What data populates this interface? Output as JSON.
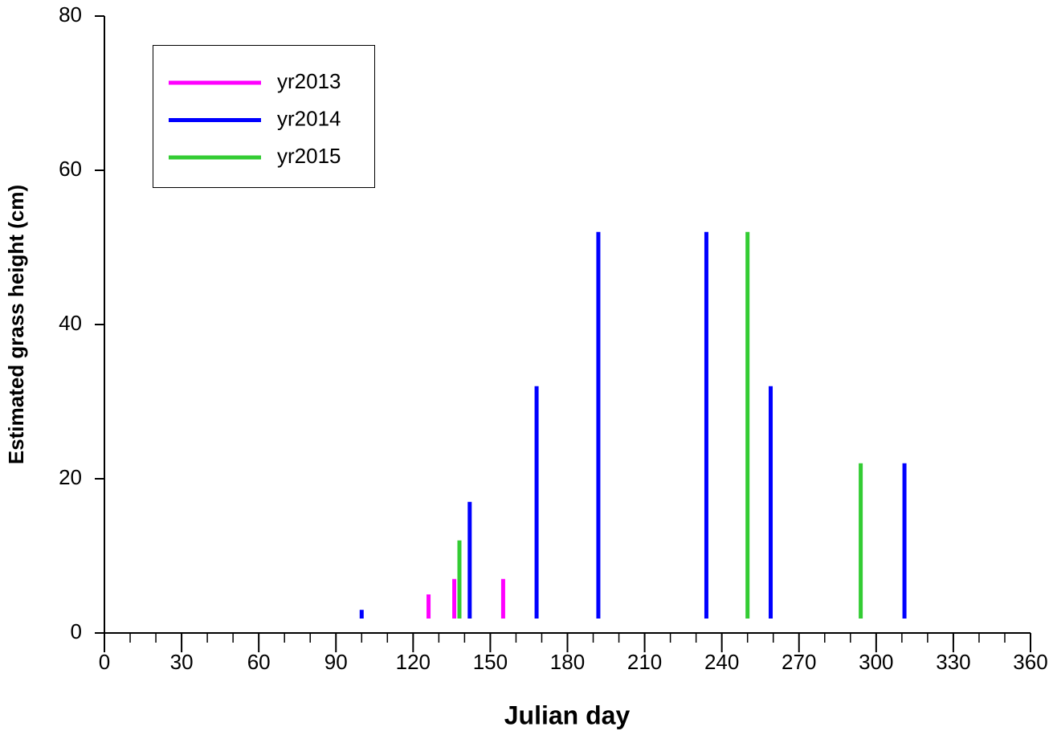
{
  "chart_data": {
    "type": "drop-line",
    "xlabel": "Julian day",
    "ylabel": "Estimated grass height (cm)",
    "xlim": [
      0,
      360
    ],
    "xticks": [
      0,
      30,
      60,
      90,
      120,
      150,
      180,
      210,
      240,
      270,
      300,
      330,
      360
    ],
    "xminorticks": [
      0,
      10,
      20,
      30,
      40,
      50,
      60,
      70,
      80,
      90,
      100,
      110,
      120,
      130,
      140,
      150,
      160,
      170,
      180,
      190,
      200,
      210,
      220,
      230,
      240,
      250,
      260,
      270,
      280,
      290,
      300,
      310,
      320,
      330,
      340,
      350,
      360
    ],
    "ylim": [
      0,
      80
    ],
    "yticks": [
      0,
      20,
      40,
      60,
      80
    ],
    "legend": "upper left",
    "series": [
      {
        "name": "yr2013",
        "color": "#ff00ff",
        "x": [
          126,
          136,
          155
        ],
        "values": [
          5,
          7,
          7
        ]
      },
      {
        "name": "yr2014",
        "color": "#0000ff",
        "x": [
          100,
          142,
          168,
          192,
          234,
          259,
          311
        ],
        "values": [
          3,
          17,
          32,
          52,
          52,
          32,
          22
        ]
      },
      {
        "name": "yr2015",
        "color": "#33cc33",
        "x": [
          138,
          250,
          294
        ],
        "values": [
          12,
          52,
          22
        ]
      }
    ]
  }
}
